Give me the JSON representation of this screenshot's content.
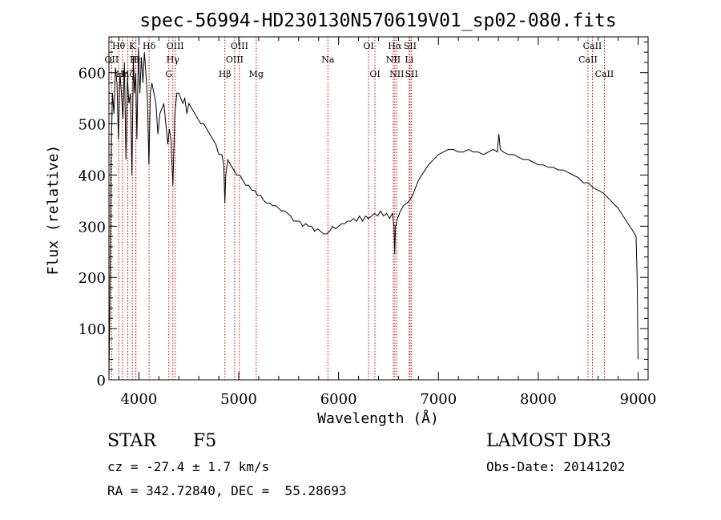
{
  "chart_data": {
    "type": "line",
    "title": "spec-56994-HD230130N570619V01_sp02-080.fits",
    "xlabel": "Wavelength (Å)",
    "ylabel": "Flux (relative)",
    "xlim": [
      3700,
      9100
    ],
    "ylim": [
      0,
      670
    ],
    "xticks": [
      4000,
      5000,
      6000,
      7000,
      8000,
      9000
    ],
    "yticks": [
      0,
      100,
      200,
      300,
      400,
      500,
      600
    ],
    "grid": false,
    "series": [
      {
        "color": "#000000",
        "x": [
          3700,
          3710,
          3720,
          3735,
          3750,
          3765,
          3780,
          3795,
          3810,
          3825,
          3840,
          3855,
          3870,
          3885,
          3900,
          3915,
          3930,
          3945,
          3955,
          3968,
          3980,
          3995,
          4010,
          4025,
          4040,
          4055,
          4070,
          4085,
          4100,
          4115,
          4130,
          4150,
          4170,
          4190,
          4210,
          4230,
          4250,
          4270,
          4290,
          4305,
          4320,
          4340,
          4360,
          4380,
          4400,
          4420,
          4440,
          4460,
          4480,
          4500,
          4530,
          4560,
          4590,
          4620,
          4650,
          4680,
          4710,
          4740,
          4770,
          4800,
          4830,
          4850,
          4861,
          4870,
          4890,
          4920,
          4950,
          4980,
          5010,
          5040,
          5070,
          5100,
          5130,
          5160,
          5190,
          5220,
          5250,
          5280,
          5310,
          5340,
          5370,
          5400,
          5430,
          5460,
          5490,
          5520,
          5550,
          5580,
          5610,
          5640,
          5670,
          5700,
          5730,
          5760,
          5790,
          5820,
          5850,
          5880,
          5910,
          5940,
          5970,
          6000,
          6030,
          6060,
          6090,
          6120,
          6150,
          6180,
          6210,
          6240,
          6270,
          6300,
          6330,
          6360,
          6390,
          6420,
          6450,
          6480,
          6510,
          6540,
          6555,
          6563,
          6570,
          6590,
          6620,
          6650,
          6680,
          6710,
          6740,
          6770,
          6800,
          6850,
          6900,
          6950,
          7000,
          7050,
          7100,
          7150,
          7200,
          7250,
          7300,
          7350,
          7400,
          7450,
          7500,
          7550,
          7590,
          7605,
          7620,
          7650,
          7700,
          7750,
          7800,
          7850,
          7900,
          7950,
          8000,
          8050,
          8100,
          8150,
          8200,
          8250,
          8300,
          8350,
          8400,
          8450,
          8500,
          8550,
          8600,
          8650,
          8700,
          8750,
          8800,
          8850,
          8900,
          8950,
          8980,
          8990,
          9000
        ],
        "y": [
          5,
          150,
          420,
          560,
          520,
          610,
          580,
          470,
          600,
          560,
          510,
          620,
          430,
          590,
          540,
          560,
          400,
          630,
          560,
          600,
          470,
          650,
          560,
          630,
          580,
          640,
          600,
          550,
          420,
          560,
          580,
          560,
          540,
          480,
          520,
          530,
          540,
          500,
          460,
          490,
          470,
          380,
          520,
          560,
          560,
          550,
          540,
          550,
          520,
          540,
          530,
          520,
          510,
          500,
          500,
          490,
          480,
          470,
          460,
          440,
          440,
          420,
          345,
          400,
          430,
          420,
          410,
          400,
          400,
          390,
          380,
          380,
          370,
          370,
          360,
          360,
          350,
          345,
          345,
          340,
          340,
          335,
          330,
          330,
          325,
          320,
          310,
          310,
          310,
          300,
          305,
          300,
          300,
          290,
          295,
          290,
          285,
          285,
          290,
          300,
          295,
          300,
          305,
          305,
          310,
          310,
          315,
          310,
          320,
          310,
          320,
          315,
          320,
          325,
          320,
          330,
          320,
          325,
          315,
          325,
          300,
          245,
          300,
          315,
          330,
          340,
          345,
          350,
          360,
          375,
          390,
          405,
          420,
          430,
          440,
          445,
          450,
          450,
          445,
          445,
          450,
          445,
          445,
          440,
          445,
          450,
          445,
          480,
          450,
          445,
          440,
          440,
          435,
          430,
          430,
          425,
          420,
          420,
          415,
          415,
          410,
          410,
          405,
          400,
          395,
          385,
          385,
          375,
          370,
          365,
          355,
          345,
          335,
          320,
          305,
          290,
          280,
          200,
          40
        ]
      }
    ],
    "lines": [
      {
        "x": 3727,
        "row": 2,
        "label": "OII"
      },
      {
        "x": 3798,
        "row": 1,
        "label": "Hθ"
      },
      {
        "x": 3835,
        "row": 3,
        "label": "Hη"
      },
      {
        "x": 3889,
        "row": 3,
        "label": "Hζ"
      },
      {
        "x": 3934,
        "row": 1,
        "label": "K"
      },
      {
        "x": 3969,
        "row": 2,
        "label": "H"
      },
      {
        "x": 3970,
        "row": 2,
        "label": "Hε"
      },
      {
        "x": 4102,
        "row": 1,
        "label": "Hδ"
      },
      {
        "x": 4300,
        "row": 3,
        "label": "G"
      },
      {
        "x": 4340,
        "row": 2,
        "label": "Hγ"
      },
      {
        "x": 4363,
        "row": 1,
        "label": "OIII"
      },
      {
        "x": 4861,
        "row": 3,
        "label": "Hβ"
      },
      {
        "x": 4959,
        "row": 2,
        "label": "OIII"
      },
      {
        "x": 5007,
        "row": 1,
        "label": "OIII"
      },
      {
        "x": 5175,
        "row": 3,
        "label": "Mg"
      },
      {
        "x": 5893,
        "row": 2,
        "label": "Na"
      },
      {
        "x": 6300,
        "row": 1,
        "label": "OI"
      },
      {
        "x": 6364,
        "row": 3,
        "label": "OI"
      },
      {
        "x": 6548,
        "row": 2,
        "label": "NII"
      },
      {
        "x": 6563,
        "row": 1,
        "label": "Hα"
      },
      {
        "x": 6583,
        "row": 3,
        "label": "NII"
      },
      {
        "x": 6707,
        "row": 2,
        "label": "Li"
      },
      {
        "x": 6716,
        "row": 1,
        "label": "SII"
      },
      {
        "x": 6731,
        "row": 3,
        "label": "SII"
      },
      {
        "x": 8498,
        "row": 2,
        "label": "CaII"
      },
      {
        "x": 8542,
        "row": 1,
        "label": "CaII"
      },
      {
        "x": 8662,
        "row": 3,
        "label": "CaII"
      }
    ]
  },
  "info": {
    "object_class": "STAR",
    "subclass": "F5",
    "survey": "LAMOST DR3",
    "cz": "cz = -27.4 ± 1.7 km/s",
    "obs_date": "Obs-Date: 20141202",
    "coords": "RA = 342.72840, DEC =  55.28693"
  },
  "colors": {
    "spectrum": "#000000",
    "line_markers": "#cc0000"
  }
}
